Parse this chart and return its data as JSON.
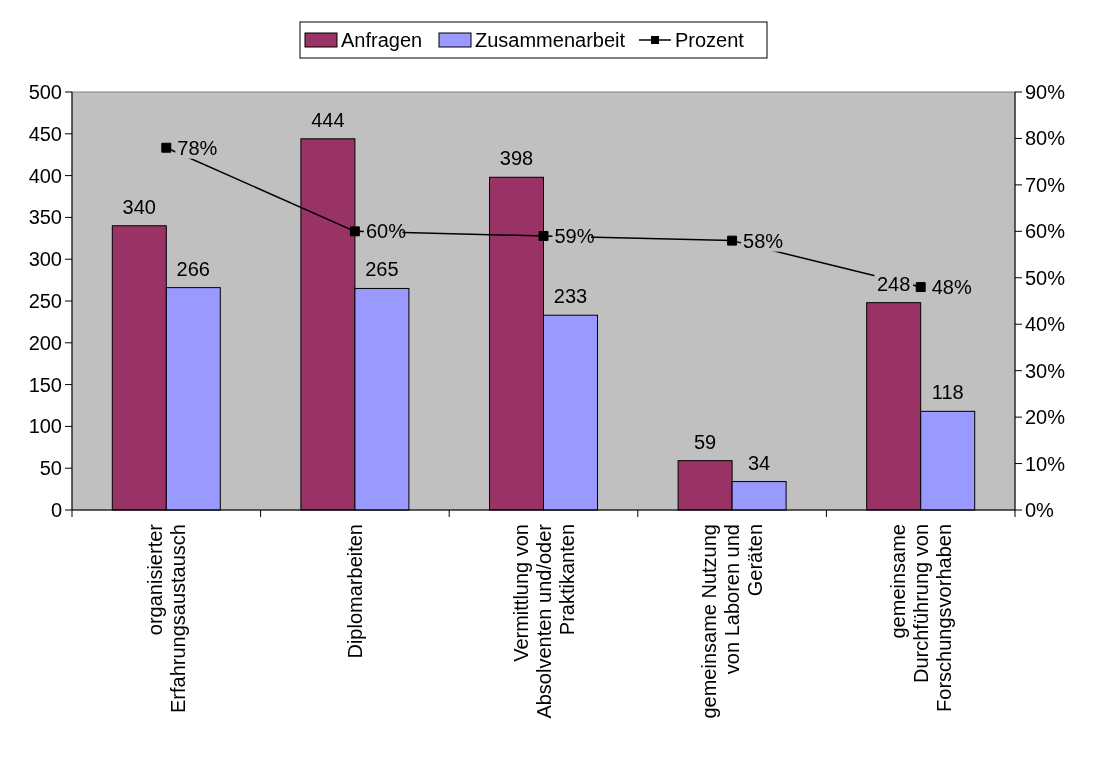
{
  "chart_data": {
    "type": "bar",
    "categories": [
      "organisierter\nErfahrungsaustausch",
      "Diplomarbeiten",
      "Vermittlung von\nAbsolventen und/oder\nPraktikanten",
      "gemeinsame Nutzung\nvon Laboren und\nGeräten",
      "gemeinsame\nDurchführung von\nForschungsvorhaben"
    ],
    "series": [
      {
        "name": "Anfragen",
        "color": "#993366",
        "values": [
          340,
          444,
          398,
          59,
          248
        ]
      },
      {
        "name": "Zusammenarbeit",
        "color": "#9999ff",
        "values": [
          266,
          265,
          233,
          34,
          118
        ]
      },
      {
        "name": "Prozent",
        "type": "line",
        "axis": "y2",
        "color": "#000000",
        "values": [
          78,
          60,
          59,
          58,
          48
        ],
        "value_labels": [
          "78%",
          "60%",
          "59%",
          "58%",
          "48%"
        ]
      }
    ],
    "ylim": [
      0,
      500
    ],
    "yticks": [
      0,
      50,
      100,
      150,
      200,
      250,
      300,
      350,
      400,
      450,
      500
    ],
    "y2lim": [
      0,
      90
    ],
    "y2ticks": [
      {
        "value": 0,
        "label": "0%"
      },
      {
        "value": 10,
        "label": "10%"
      },
      {
        "value": 20,
        "label": "20%"
      },
      {
        "value": 30,
        "label": "30%"
      },
      {
        "value": 40,
        "label": "40%"
      },
      {
        "value": 50,
        "label": "50%"
      },
      {
        "value": 60,
        "label": "60%"
      },
      {
        "value": 70,
        "label": "70%"
      },
      {
        "value": 80,
        "label": "80%"
      },
      {
        "value": 90,
        "label": "90%"
      }
    ],
    "data_labels": true,
    "legend": "top",
    "marker": "square",
    "grid": false
  }
}
